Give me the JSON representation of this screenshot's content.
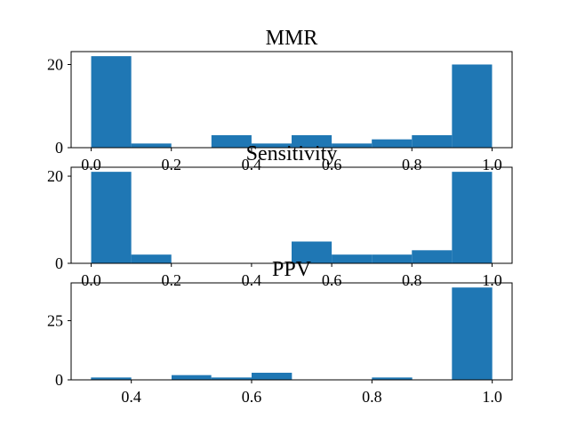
{
  "chart_data": [
    {
      "type": "bar",
      "title": "MMR",
      "xlabel": "",
      "ylabel": "",
      "color": "#1f77b4",
      "bins": [
        {
          "x0": 0.0,
          "x1": 0.1,
          "count": 22
        },
        {
          "x0": 0.1,
          "x1": 0.2,
          "count": 1
        },
        {
          "x0": 0.2,
          "x1": 0.3,
          "count": 0
        },
        {
          "x0": 0.3,
          "x1": 0.4,
          "count": 3
        },
        {
          "x0": 0.4,
          "x1": 0.5,
          "count": 1
        },
        {
          "x0": 0.5,
          "x1": 0.6,
          "count": 3
        },
        {
          "x0": 0.6,
          "x1": 0.7,
          "count": 1
        },
        {
          "x0": 0.7,
          "x1": 0.8,
          "count": 2
        },
        {
          "x0": 0.8,
          "x1": 0.9,
          "count": 3
        },
        {
          "x0": 0.9,
          "x1": 1.0,
          "count": 20
        }
      ],
      "xlim": [
        -0.05,
        1.05
      ],
      "ylim": [
        0,
        23.1
      ],
      "xticks": [
        0.0,
        0.2,
        0.4,
        0.6,
        0.8,
        1.0
      ],
      "xtick_labels": [
        "0.0",
        "0.2",
        "0.4",
        "0.6",
        "0.8",
        "1.0"
      ],
      "yticks": [
        0,
        20
      ],
      "ytick_labels": [
        "0",
        "20"
      ]
    },
    {
      "type": "bar",
      "title": "Sensitivity",
      "xlabel": "",
      "ylabel": "",
      "color": "#1f77b4",
      "bins": [
        {
          "x0": 0.0,
          "x1": 0.1,
          "count": 21
        },
        {
          "x0": 0.1,
          "x1": 0.2,
          "count": 2
        },
        {
          "x0": 0.2,
          "x1": 0.3,
          "count": 0
        },
        {
          "x0": 0.3,
          "x1": 0.4,
          "count": 0
        },
        {
          "x0": 0.4,
          "x1": 0.5,
          "count": 0
        },
        {
          "x0": 0.5,
          "x1": 0.6,
          "count": 5
        },
        {
          "x0": 0.6,
          "x1": 0.7,
          "count": 2
        },
        {
          "x0": 0.7,
          "x1": 0.8,
          "count": 2
        },
        {
          "x0": 0.8,
          "x1": 0.9,
          "count": 3
        },
        {
          "x0": 0.9,
          "x1": 1.0,
          "count": 21
        }
      ],
      "xlim": [
        -0.05,
        1.05
      ],
      "ylim": [
        0,
        22.05
      ],
      "xticks": [
        0.0,
        0.2,
        0.4,
        0.6,
        0.8,
        1.0
      ],
      "xtick_labels": [
        "0.0",
        "0.2",
        "0.4",
        "0.6",
        "0.8",
        "1.0"
      ],
      "yticks": [
        0,
        20
      ],
      "ytick_labels": [
        "0",
        "20"
      ]
    },
    {
      "type": "bar",
      "title": "PPV",
      "xlabel": "",
      "ylabel": "",
      "color": "#1f77b4",
      "bins": [
        {
          "x0": 0.333,
          "x1": 0.4,
          "count": 1
        },
        {
          "x0": 0.4,
          "x1": 0.467,
          "count": 0
        },
        {
          "x0": 0.467,
          "x1": 0.533,
          "count": 2
        },
        {
          "x0": 0.533,
          "x1": 0.6,
          "count": 1
        },
        {
          "x0": 0.6,
          "x1": 0.667,
          "count": 3
        },
        {
          "x0": 0.667,
          "x1": 0.733,
          "count": 0
        },
        {
          "x0": 0.733,
          "x1": 0.8,
          "count": 0
        },
        {
          "x0": 0.8,
          "x1": 0.867,
          "count": 1
        },
        {
          "x0": 0.867,
          "x1": 0.933,
          "count": 0
        },
        {
          "x0": 0.933,
          "x1": 1.0,
          "count": 39
        }
      ],
      "xlim": [
        0.3,
        1.033
      ],
      "ylim": [
        0,
        40.95
      ],
      "xticks": [
        0.4,
        0.6,
        0.8,
        1.0
      ],
      "xtick_labels": [
        "0.4",
        "0.6",
        "0.8",
        "1.0"
      ],
      "yticks": [
        0,
        25
      ],
      "ytick_labels": [
        "0",
        "25"
      ]
    }
  ]
}
